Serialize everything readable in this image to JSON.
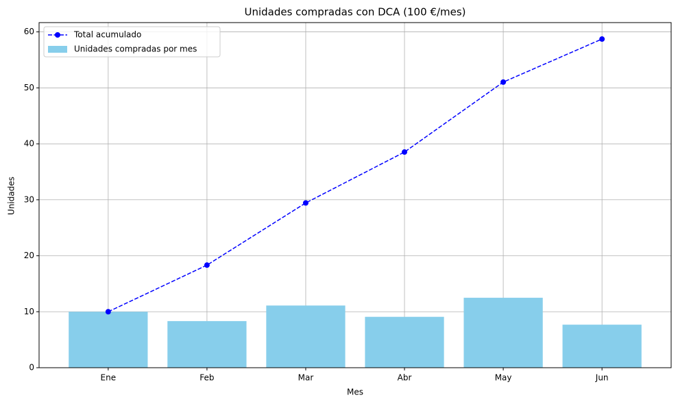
{
  "chart_data": {
    "type": "bar",
    "title": "Unidades compradas con DCA (100 €/mes)",
    "x_label": "Mes",
    "y_label": "Unidades",
    "categories": [
      "Ene",
      "Feb",
      "Mar",
      "Abr",
      "May",
      "Jun"
    ],
    "series": [
      {
        "name": "Unidades compradas por mes",
        "type": "bar",
        "color": "#87ceeb",
        "values": [
          10.0,
          8.33,
          11.11,
          9.09,
          12.5,
          7.69
        ]
      },
      {
        "name": "Total acumulado",
        "type": "line",
        "color": "#0000ff",
        "values": [
          10.0,
          18.33,
          29.44,
          38.53,
          51.03,
          58.72
        ]
      }
    ],
    "ylim": [
      0,
      61.66
    ],
    "yticks": [
      0,
      10,
      20,
      30,
      40,
      50,
      60
    ],
    "grid": true,
    "legend": "upper left"
  }
}
